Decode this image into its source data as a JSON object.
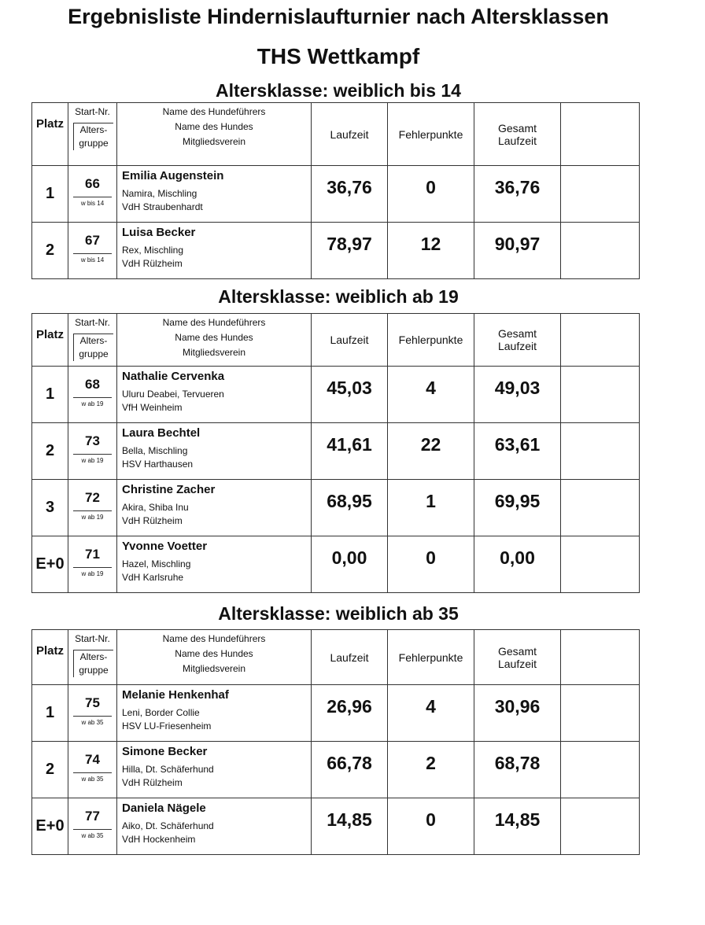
{
  "title": "Ergebnisliste Hindernislaufturnier nach Altersklassen",
  "subtitle": "THS Wettkampf",
  "sections": [
    {
      "heading": "Altersklasse: weiblich bis 14",
      "header": {
        "platz": "Platz",
        "start_nr": "Start-Nr.",
        "gruppe": [
          "Alters-",
          "gruppe"
        ],
        "name": [
          "Name des Hundeführers",
          "Name des Hundes",
          "Mitgliedsverein"
        ],
        "laufzeit": "Laufzeit",
        "fehler": "Fehlerpunkte",
        "gesamt": [
          "Gesamt",
          "Laufzeit"
        ]
      },
      "rows": [
        {
          "platz": "1",
          "start_nr": "66",
          "gruppe": "w bis 14",
          "handler": "Emilia Augenstein",
          "dog": "Namira, Mischling",
          "club": "VdH Straubenhardt",
          "laufzeit": "36,76",
          "fehler": "0",
          "gesamt": "36,76"
        },
        {
          "platz": "2",
          "start_nr": "67",
          "gruppe": "w bis 14",
          "handler": "Luisa Becker",
          "dog": "Rex, Mischling",
          "club": "VdH Rülzheim",
          "laufzeit": "78,97",
          "fehler": "12",
          "gesamt": "90,97"
        }
      ]
    },
    {
      "heading": "Altersklasse: weiblich ab 19",
      "header": {
        "platz": "Platz",
        "start_nr": "Start-Nr.",
        "gruppe": [
          "Alters-",
          "gruppe"
        ],
        "name": [
          "Name des Hundeführers",
          "Name des Hundes",
          "Mitgliedsverein"
        ],
        "laufzeit": "Laufzeit",
        "fehler": "Fehlerpunkte",
        "gesamt": [
          "Gesamt",
          "Laufzeit"
        ]
      },
      "rows": [
        {
          "platz": "1",
          "start_nr": "68",
          "gruppe": "w ab 19",
          "handler": "Nathalie Cervenka",
          "dog": "Uluru Deabei, Tervueren",
          "club": "VfH Weinheim",
          "laufzeit": "45,03",
          "fehler": "4",
          "gesamt": "49,03"
        },
        {
          "platz": "2",
          "start_nr": "73",
          "gruppe": "w ab 19",
          "handler": "Laura Bechtel",
          "dog": "Bella, Mischling",
          "club": "HSV Harthausen",
          "laufzeit": "41,61",
          "fehler": "22",
          "gesamt": "63,61"
        },
        {
          "platz": "3",
          "start_nr": "72",
          "gruppe": "w ab 19",
          "handler": "Christine Zacher",
          "dog": "Akira, Shiba Inu",
          "club": "VdH Rülzheim",
          "laufzeit": "68,95",
          "fehler": "1",
          "gesamt": "69,95"
        },
        {
          "platz": "E+0",
          "start_nr": "71",
          "gruppe": "w ab 19",
          "handler": "Yvonne Voetter",
          "dog": "Hazel, Mischling",
          "club": "VdH Karlsruhe",
          "laufzeit": "0,00",
          "fehler": "0",
          "gesamt": "0,00"
        }
      ]
    },
    {
      "heading": "Altersklasse: weiblich ab 35",
      "header": {
        "platz": "Platz",
        "start_nr": "Start-Nr.",
        "gruppe": [
          "Alters-",
          "gruppe"
        ],
        "name": [
          "Name des Hundeführers",
          "Name des Hundes",
          "Mitgliedsverein"
        ],
        "laufzeit": "Laufzeit",
        "fehler": "Fehlerpunkte",
        "gesamt": [
          "Gesamt",
          "Laufzeit"
        ]
      },
      "rows": [
        {
          "platz": "1",
          "start_nr": "75",
          "gruppe": "w ab 35",
          "handler": "Melanie Henkenhaf",
          "dog": "Leni, Border Collie",
          "club": "HSV LU-Friesenheim",
          "laufzeit": "26,96",
          "fehler": "4",
          "gesamt": "30,96"
        },
        {
          "platz": "2",
          "start_nr": "74",
          "gruppe": "w ab 35",
          "handler": "Simone Becker",
          "dog": "Hilla, Dt. Schäferhund",
          "club": "VdH Rülzheim",
          "laufzeit": "66,78",
          "fehler": "2",
          "gesamt": "68,78"
        },
        {
          "platz": "E+0",
          "start_nr": "77",
          "gruppe": "w ab 35",
          "handler": "Daniela Nägele",
          "dog": "Aiko, Dt. Schäferhund",
          "club": "VdH Hockenheim",
          "laufzeit": "14,85",
          "fehler": "0",
          "gesamt": "14,85"
        }
      ]
    }
  ]
}
